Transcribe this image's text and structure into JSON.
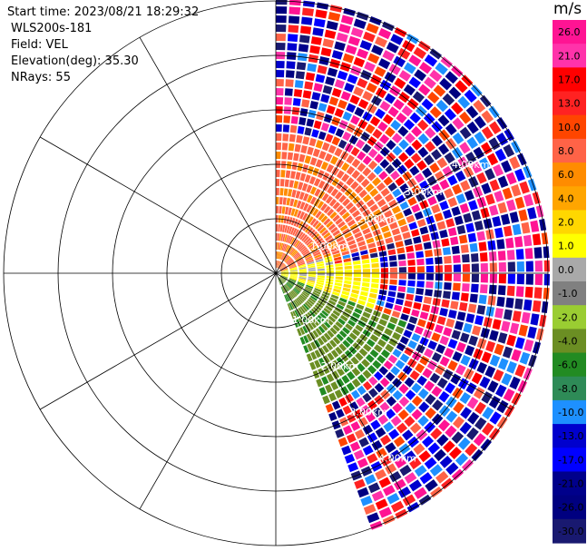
{
  "info": {
    "start_time": "Start time: 2023/08/21 18:29:32",
    "instrument": "WLS200s-181",
    "field": "Field: VEL",
    "elevation": "Elevation(deg): 35.30",
    "nrays": "NRays: 55"
  },
  "colorbar": {
    "unit": "m/s",
    "ticks": [
      "26.0",
      "21.0",
      "17.0",
      "13.0",
      "10.0",
      "8.0",
      "6.0",
      "4.0",
      "2.0",
      "1.0",
      "0.0",
      "-1.0",
      "-2.0",
      "-4.0",
      "-6.0",
      "-8.0",
      "-10.0",
      "-13.0",
      "-17.0",
      "-21.0",
      "-26.0",
      "-30.0"
    ],
    "colors": [
      "#ff1493",
      "#ff33aa",
      "#ff0000",
      "#ff2222",
      "#ff4500",
      "#ff6347",
      "#ff8c00",
      "#ffa500",
      "#ffd700",
      "#ffff00",
      "#a9a9a9",
      "#808080",
      "#9acd32",
      "#6b8e23",
      "#228b22",
      "#2e8b57",
      "#1e90ff",
      "#0000cd",
      "#0000ff",
      "#00008b",
      "#000080",
      "#191970"
    ]
  },
  "chart_data": {
    "type": "polar-ppi",
    "field": "VEL",
    "units": "m/s",
    "elevation_deg": 35.3,
    "n_rays": 55,
    "azimuth_range_deg": [
      0,
      160
    ],
    "range_ring_labels": [
      "1.00km",
      "2.00km",
      "3.00km",
      "4.00km"
    ],
    "grid": true
  }
}
